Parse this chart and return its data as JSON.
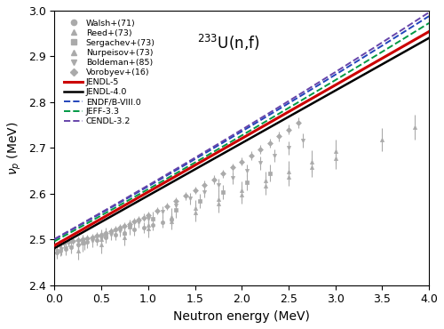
{
  "title": "$^{233}$U(n,f)",
  "xlabel": "Neutron energy (MeV)",
  "ylabel": "$\\nu_p$ (MeV)",
  "xlim": [
    0,
    4
  ],
  "ylim": [
    2.4,
    3.0
  ],
  "yticks": [
    2.4,
    2.5,
    2.6,
    2.7,
    2.8,
    2.9,
    3.0
  ],
  "xticks": [
    0,
    0.5,
    1.0,
    1.5,
    2.0,
    2.5,
    3.0,
    3.5,
    4.0
  ],
  "line_models": {
    "JENDL-5": {
      "color": "#cc0000",
      "lw": 2.2,
      "ls": "-",
      "zorder": 5
    },
    "JENDL-4.0": {
      "color": "#000000",
      "lw": 1.8,
      "ls": "-",
      "zorder": 4
    },
    "ENDF/B-VIII.0": {
      "color": "#2244bb",
      "lw": 1.4,
      "ls": "--",
      "zorder": 3
    },
    "JEFF-3.3": {
      "color": "#009944",
      "lw": 1.4,
      "ls": "--",
      "zorder": 3
    },
    "CENDL-3.2": {
      "color": "#6644aa",
      "lw": 1.4,
      "ls": "--",
      "zorder": 3
    }
  },
  "model_params": {
    "JENDL-5": {
      "a": 2.487,
      "b": 0.1168,
      "c": 0.0
    },
    "JENDL-4.0": {
      "a": 2.481,
      "b": 0.1148,
      "c": 0.0
    },
    "ENDF/B-VIII.0": {
      "a": 2.5,
      "b": 0.114,
      "c": 0.002
    },
    "JEFF-3.3": {
      "a": 2.496,
      "b": 0.112,
      "c": 0.0018
    },
    "CENDL-3.2": {
      "a": 2.501,
      "b": 0.115,
      "c": 0.0022
    }
  },
  "legend_labels": [
    "Walsh+(71)",
    "Reed+(73)",
    "Sergachev+(73)",
    "Nurpeisov+(73)",
    "Boldeman+(85)",
    "Vorobyev+(16)"
  ],
  "data_color": "#aaaaaa",
  "exp_data": {
    "Walsh71": {
      "x": [
        0.02,
        0.06,
        0.12,
        0.18,
        0.25,
        0.35,
        0.45,
        0.55,
        0.65,
        0.75,
        0.85,
        0.95,
        1.05,
        1.15,
        1.25
      ],
      "y": [
        2.471,
        2.476,
        2.479,
        2.484,
        2.489,
        2.494,
        2.499,
        2.505,
        2.51,
        2.515,
        2.521,
        2.526,
        2.532,
        2.537,
        2.543
      ],
      "yerr": [
        0.013,
        0.013,
        0.013,
        0.013,
        0.012,
        0.012,
        0.012,
        0.012,
        0.012,
        0.012,
        0.012,
        0.012,
        0.012,
        0.012,
        0.012
      ],
      "marker": "o"
    },
    "Reed73": {
      "x": [
        0.25,
        0.5,
        0.75,
        1.0,
        1.25,
        1.5,
        1.75,
        2.0,
        2.25,
        2.5,
        2.75,
        3.0,
        3.5,
        3.85
      ],
      "y": [
        2.475,
        2.489,
        2.505,
        2.523,
        2.54,
        2.558,
        2.578,
        2.597,
        2.617,
        2.637,
        2.657,
        2.677,
        2.718,
        2.745
      ],
      "yerr": [
        0.02,
        0.019,
        0.018,
        0.018,
        0.018,
        0.018,
        0.019,
        0.019,
        0.019,
        0.02,
        0.021,
        0.022,
        0.025,
        0.027
      ],
      "marker": "^"
    },
    "Sergachev73": {
      "x": [
        0.3,
        0.55,
        0.8,
        1.05,
        1.3,
        1.55,
        1.8,
        2.05,
        2.3
      ],
      "y": [
        2.492,
        2.509,
        2.527,
        2.545,
        2.564,
        2.584,
        2.604,
        2.624,
        2.645
      ],
      "yerr": [
        0.018,
        0.017,
        0.016,
        0.016,
        0.016,
        0.016,
        0.016,
        0.017,
        0.018
      ],
      "marker": "s"
    },
    "Nurpeisov73": {
      "x": [
        0.5,
        0.75,
        1.0,
        1.25,
        1.5,
        1.75,
        2.0,
        2.25,
        2.5,
        2.75,
        3.0
      ],
      "y": [
        2.5,
        2.515,
        2.531,
        2.549,
        2.568,
        2.588,
        2.607,
        2.628,
        2.649,
        2.67,
        2.692
      ],
      "yerr": [
        0.021,
        0.02,
        0.019,
        0.019,
        0.019,
        0.019,
        0.02,
        0.021,
        0.022,
        0.024,
        0.026
      ],
      "marker": "^"
    },
    "Boldeman85": {
      "x": [
        0.02,
        0.07,
        0.12,
        0.18,
        0.25,
        0.32,
        0.4,
        0.5,
        0.6,
        0.7,
        0.8,
        0.9,
        1.0,
        1.15,
        1.3,
        1.45,
        1.6,
        1.75,
        1.9,
        2.05,
        2.2,
        2.35,
        2.5,
        2.65
      ],
      "y": [
        2.476,
        2.479,
        2.481,
        2.483,
        2.487,
        2.491,
        2.496,
        2.502,
        2.511,
        2.519,
        2.528,
        2.537,
        2.546,
        2.56,
        2.574,
        2.589,
        2.604,
        2.619,
        2.635,
        2.651,
        2.667,
        2.683,
        2.7,
        2.716
      ],
      "yerr": [
        0.014,
        0.014,
        0.014,
        0.014,
        0.014,
        0.014,
        0.013,
        0.013,
        0.013,
        0.013,
        0.013,
        0.012,
        0.012,
        0.012,
        0.012,
        0.012,
        0.013,
        0.013,
        0.013,
        0.013,
        0.014,
        0.014,
        0.015,
        0.016
      ],
      "marker": "v"
    },
    "Vorobyev16": {
      "x": [
        0.05,
        0.1,
        0.15,
        0.2,
        0.25,
        0.3,
        0.35,
        0.4,
        0.45,
        0.5,
        0.55,
        0.6,
        0.65,
        0.7,
        0.75,
        0.8,
        0.85,
        0.9,
        0.95,
        1.0,
        1.1,
        1.2,
        1.3,
        1.4,
        1.5,
        1.6,
        1.7,
        1.8,
        1.9,
        2.0,
        2.1,
        2.2,
        2.3,
        2.4,
        2.5,
        2.6
      ],
      "y": [
        2.49,
        2.492,
        2.494,
        2.496,
        2.498,
        2.5,
        2.502,
        2.505,
        2.508,
        2.511,
        2.514,
        2.518,
        2.522,
        2.526,
        2.53,
        2.534,
        2.539,
        2.543,
        2.548,
        2.553,
        2.563,
        2.573,
        2.584,
        2.595,
        2.607,
        2.619,
        2.631,
        2.644,
        2.657,
        2.67,
        2.683,
        2.697,
        2.711,
        2.725,
        2.74,
        2.755
      ],
      "yerr": [
        0.008,
        0.008,
        0.008,
        0.008,
        0.008,
        0.008,
        0.008,
        0.008,
        0.008,
        0.008,
        0.008,
        0.008,
        0.008,
        0.008,
        0.008,
        0.008,
        0.008,
        0.008,
        0.008,
        0.008,
        0.008,
        0.008,
        0.008,
        0.008,
        0.008,
        0.009,
        0.009,
        0.009,
        0.009,
        0.009,
        0.009,
        0.01,
        0.01,
        0.01,
        0.011,
        0.011
      ],
      "marker": "D"
    }
  }
}
